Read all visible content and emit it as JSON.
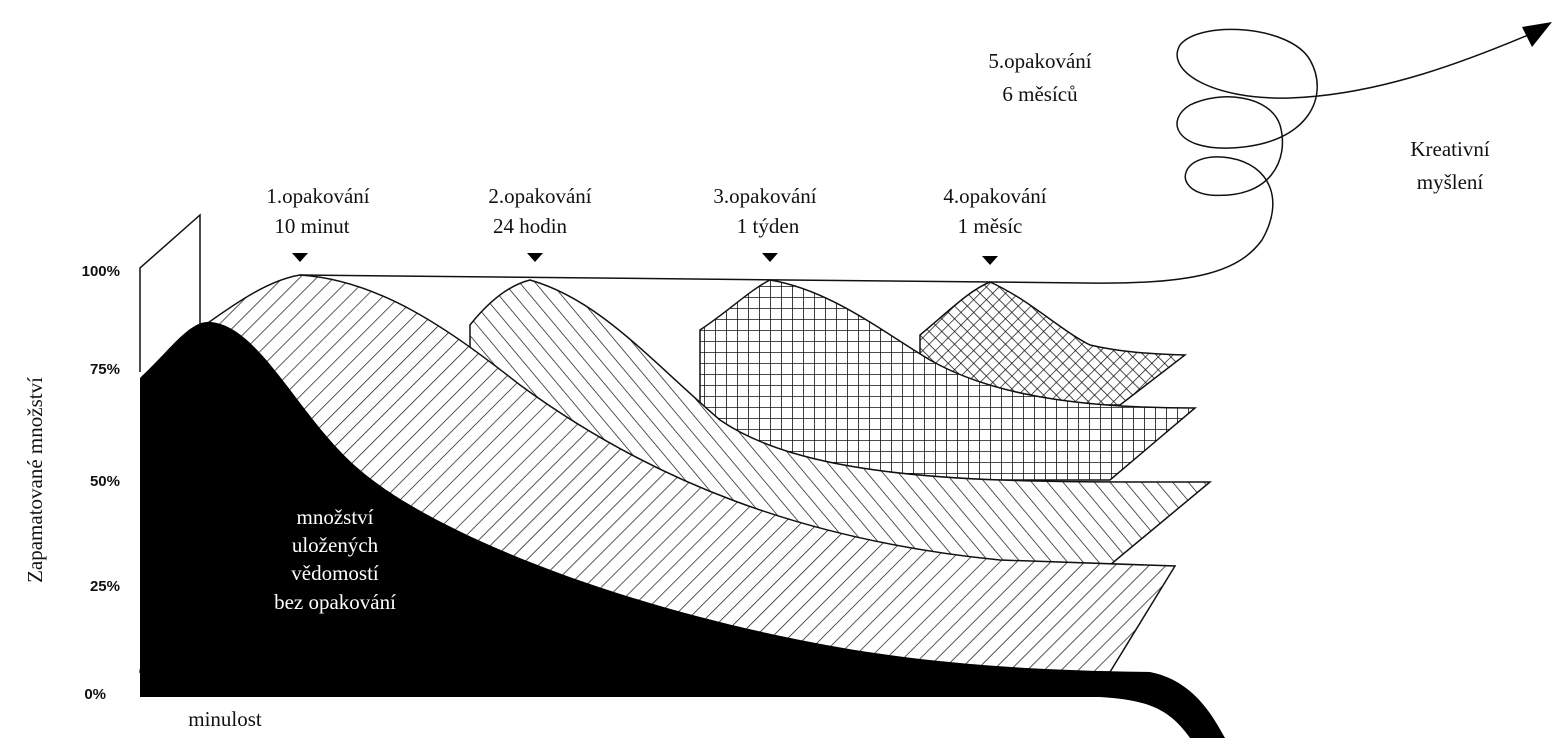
{
  "y_axis": {
    "title": "Zapamatované množství",
    "ticks": [
      "100%",
      "75%",
      "50%",
      "25%",
      "0%"
    ]
  },
  "repetitions": [
    {
      "label": "1.opakování",
      "interval": "10 minut"
    },
    {
      "label": "2.opakování",
      "interval": "24 hodin"
    },
    {
      "label": "3.opakování",
      "interval": "1 týden"
    },
    {
      "label": "4.opakování",
      "interval": "1 měsíc"
    },
    {
      "label": "5.opakování",
      "interval": "6 měsíců"
    }
  ],
  "creative": [
    "Kreativní",
    "myšlení"
  ],
  "black_area_label": [
    "množství",
    "uložených",
    "vědomostí",
    "bez opakování"
  ],
  "x_axis_label": "minulost"
}
